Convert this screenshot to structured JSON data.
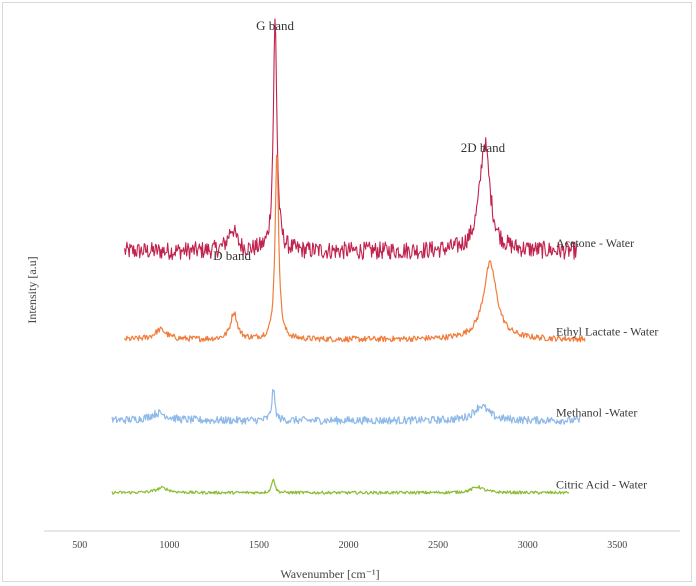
{
  "chart_data": {
    "type": "line",
    "title": "",
    "xlabel": "Wavenumber [cm⁻¹]",
    "ylabel": "Intensity [a.u]",
    "xlim": [
      300,
      3850
    ],
    "x_ticks": [
      500,
      1000,
      1500,
      2000,
      2500,
      3000,
      3500
    ],
    "x_tick_labels": [
      "500",
      "1000",
      "1500",
      "2000",
      "2500",
      "3000",
      "3500"
    ],
    "grid": false,
    "legend": "none",
    "annotations": [
      {
        "text": "D band",
        "x": 1350
      },
      {
        "text": "G band",
        "x": 1590
      },
      {
        "text": "2D band",
        "x": 2750
      }
    ],
    "series": [
      {
        "name": "Acetone - Water",
        "color": "#c0234e",
        "x_range": [
          750,
          3280
        ],
        "baseline": 0.57,
        "noise": 0.018,
        "peaks": [
          {
            "x": 1350,
            "height": 0.045,
            "width": 28
          },
          {
            "x": 1590,
            "height": 0.47,
            "width": 12
          },
          {
            "x": 2760,
            "height": 0.22,
            "width": 35
          }
        ]
      },
      {
        "name": "Ethyl Lactate - Water",
        "color": "#f07d3c",
        "x_range": [
          750,
          3320
        ],
        "baseline": 0.39,
        "noise": 0.006,
        "peaks": [
          {
            "x": 950,
            "height": 0.02,
            "width": 40
          },
          {
            "x": 1360,
            "height": 0.055,
            "width": 22
          },
          {
            "x": 1600,
            "height": 0.38,
            "width": 12
          },
          {
            "x": 2790,
            "height": 0.155,
            "width": 45
          }
        ]
      },
      {
        "name": "Methanol -Water",
        "color": "#8fb9e8",
        "x_range": [
          680,
          3290
        ],
        "baseline": 0.225,
        "noise": 0.008,
        "peaks": [
          {
            "x": 940,
            "height": 0.015,
            "width": 60
          },
          {
            "x": 1580,
            "height": 0.065,
            "width": 10
          },
          {
            "x": 2740,
            "height": 0.03,
            "width": 50
          }
        ]
      },
      {
        "name": "Citric Acid - Water",
        "color": "#8cbc34",
        "x_range": [
          680,
          3230
        ],
        "baseline": 0.078,
        "noise": 0.003,
        "peaks": [
          {
            "x": 960,
            "height": 0.01,
            "width": 40
          },
          {
            "x": 1580,
            "height": 0.03,
            "width": 10
          },
          {
            "x": 2720,
            "height": 0.012,
            "width": 40
          }
        ]
      }
    ]
  }
}
